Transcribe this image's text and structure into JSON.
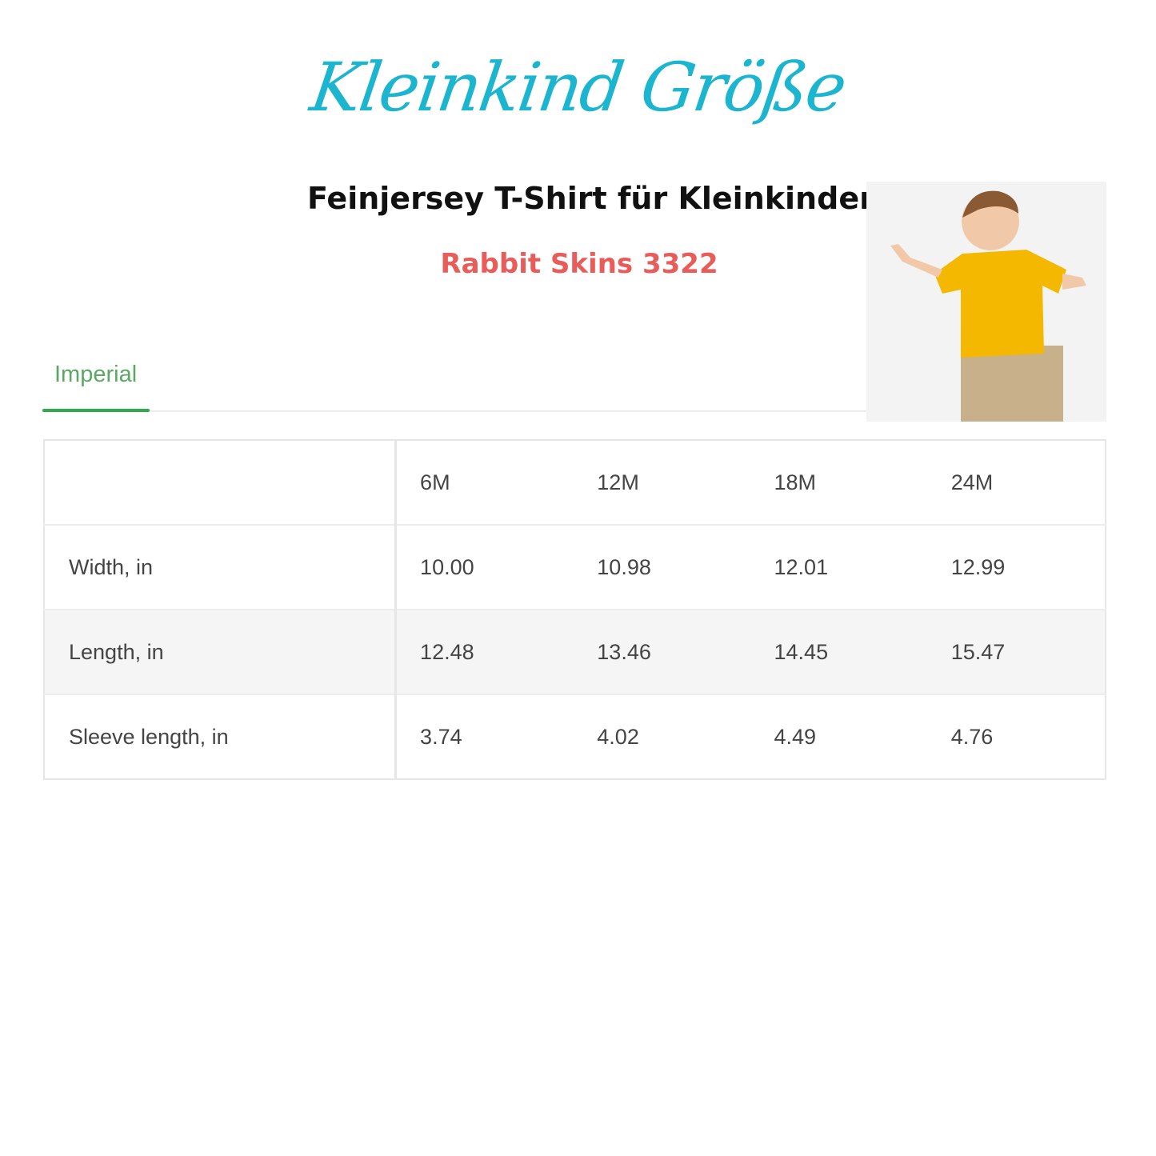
{
  "title": "Kleinkind Größe",
  "heading": "Feinjersey T-Shirt für Kleinkinder",
  "subheading": "Rabbit Skins 3322",
  "tab": {
    "label": "Imperial",
    "accent": "#2eaa4a"
  },
  "table": {
    "columns": [
      "",
      "6M",
      "12M",
      "18M",
      "24M"
    ],
    "rows": [
      {
        "label": "Width, in",
        "values": [
          "10.00",
          "10.98",
          "12.01",
          "12.99"
        ]
      },
      {
        "label": "Length, in",
        "values": [
          "12.48",
          "13.46",
          "14.45",
          "15.47"
        ]
      },
      {
        "label": "Sleeve length, in",
        "values": [
          "3.74",
          "4.02",
          "4.49",
          "4.76"
        ]
      }
    ]
  },
  "colors": {
    "title": "#1cb5d0",
    "subheading": "#e85c5a",
    "shirt": "#f5b800"
  }
}
